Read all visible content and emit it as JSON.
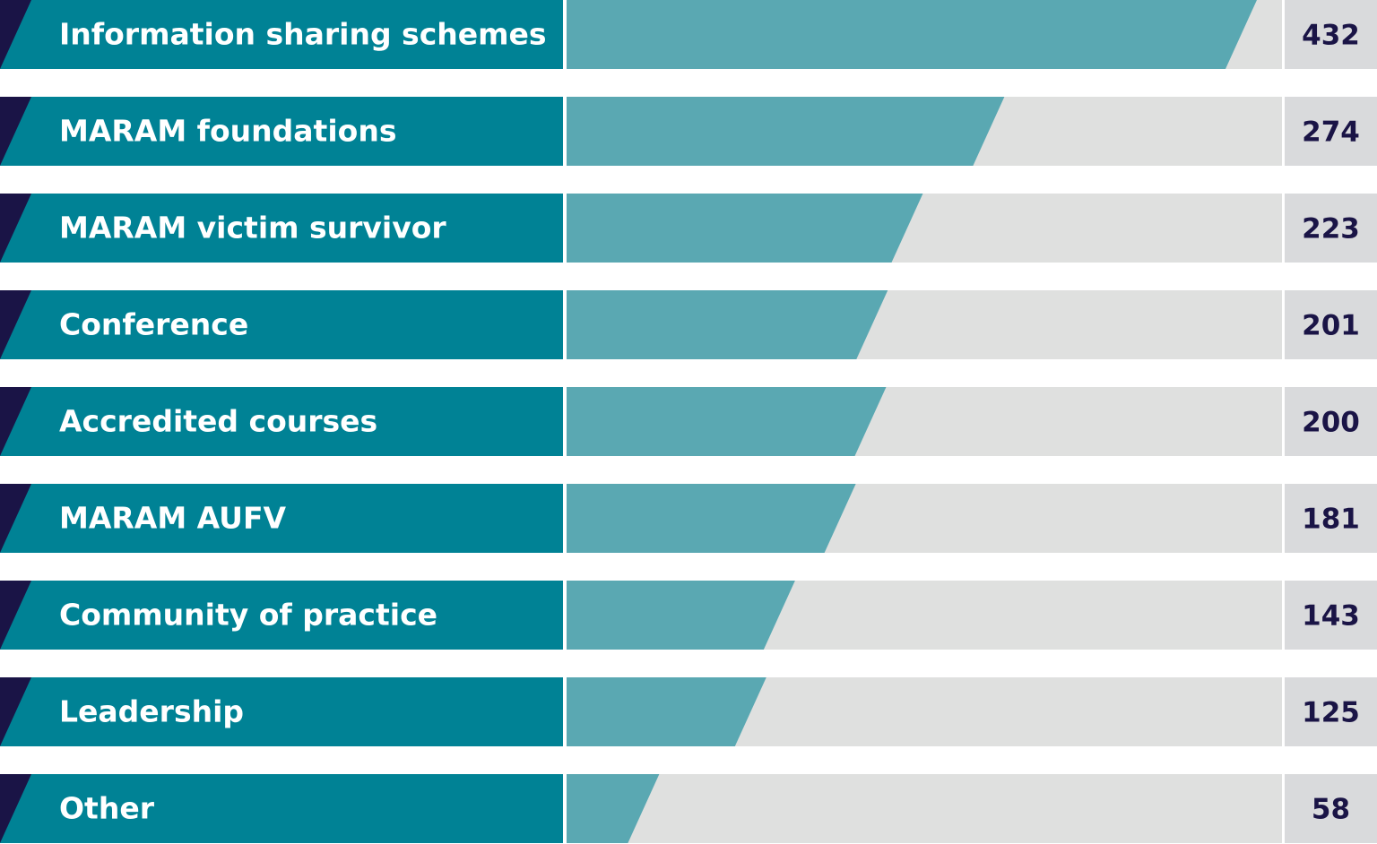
{
  "chart_data": {
    "type": "bar",
    "orientation": "horizontal",
    "categories": [
      "Information sharing schemes",
      "MARAM foundations",
      "MARAM victim survivor",
      "Conference",
      "Accredited courses",
      "MARAM AUFV",
      "Community of practice",
      "Leadership",
      "Other"
    ],
    "values": [
      432,
      274,
      223,
      201,
      200,
      181,
      143,
      125,
      58
    ],
    "value_labels": [
      "432",
      "274",
      "223",
      "201",
      "200",
      "181",
      "143",
      "125",
      "58"
    ],
    "xlim": [
      0,
      432
    ],
    "title": "",
    "xlabel": "",
    "ylabel": "",
    "grid": false,
    "legend": "none"
  },
  "colors": {
    "label_band": "#008295",
    "bar_fill": "#5aa8b2",
    "track": "#dfe0df",
    "value_box": "#d9dadc",
    "accent": "#1a1446",
    "label_text": "#ffffff",
    "value_text": "#1a1446"
  }
}
